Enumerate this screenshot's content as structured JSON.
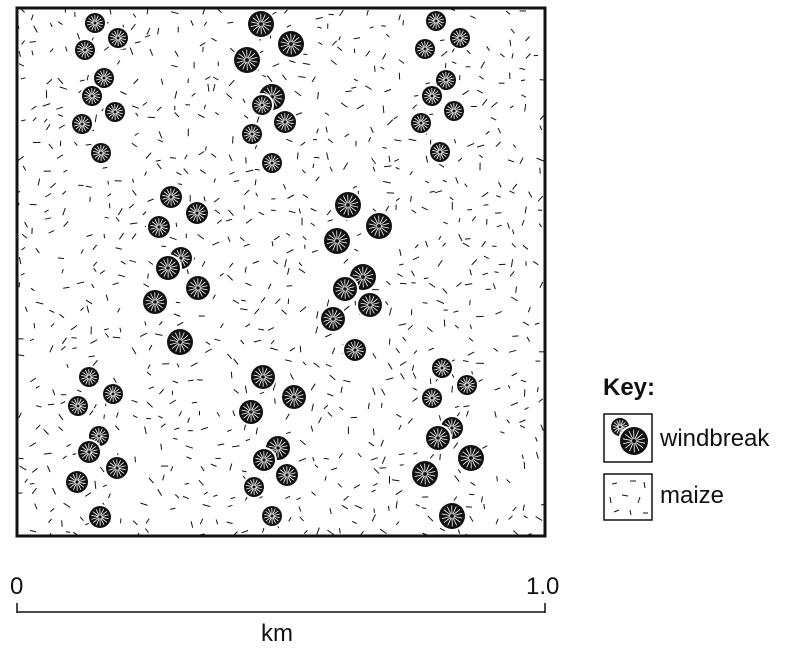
{
  "key": {
    "title": "Key:",
    "items": [
      {
        "id": "windbreak",
        "label": "windbreak",
        "symbol": "tree-cluster-icon"
      },
      {
        "id": "maize",
        "label": "maize",
        "symbol": "field-dash-icon"
      }
    ]
  },
  "scale": {
    "start_label": "0",
    "end_label": "1.0",
    "unit_label": "km",
    "length_km": 1.0
  },
  "colors": {
    "ink": "#111111",
    "background": "#ffffff"
  }
}
